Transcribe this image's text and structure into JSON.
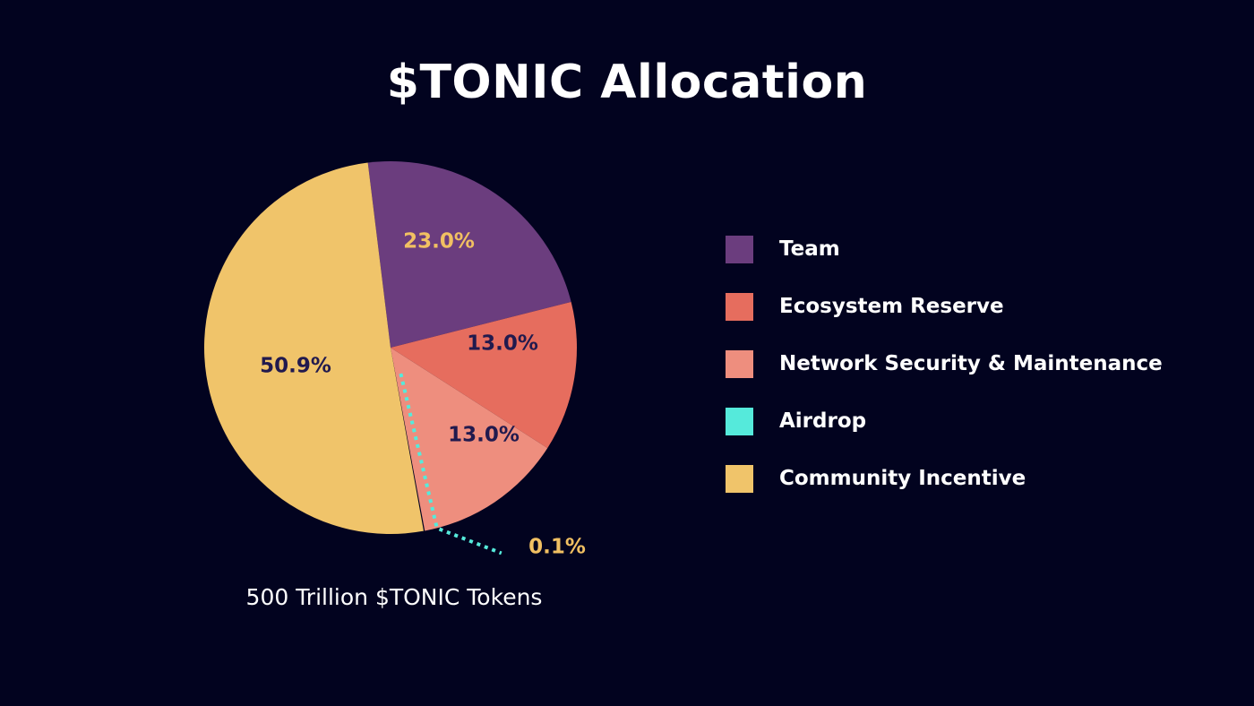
{
  "chart_data": {
    "type": "pie",
    "title": "$TONIC Allocation",
    "caption": "500 Trillion $TONIC Tokens",
    "legend_position": "right",
    "slices": [
      {
        "name": "Team",
        "value": 23.0,
        "label": "23.0%",
        "color": "#6b3d7e",
        "label_color": "#f1c062"
      },
      {
        "name": "Ecosystem Reserve",
        "value": 13.0,
        "label": "13.0%",
        "color": "#e66d5e",
        "label_color": "#211a4e"
      },
      {
        "name": "Network Security & Maintenance",
        "value": 13.0,
        "label": "13.0%",
        "color": "#ee8e7e",
        "label_color": "#211a4e"
      },
      {
        "name": "Airdrop",
        "value": 0.1,
        "label": "0.1%",
        "color": "#55eadb",
        "label_color": "#f1c062"
      },
      {
        "name": "Community Incentive",
        "value": 50.9,
        "label": "50.9%",
        "color": "#f0c46a",
        "label_color": "#211a4e"
      }
    ]
  }
}
